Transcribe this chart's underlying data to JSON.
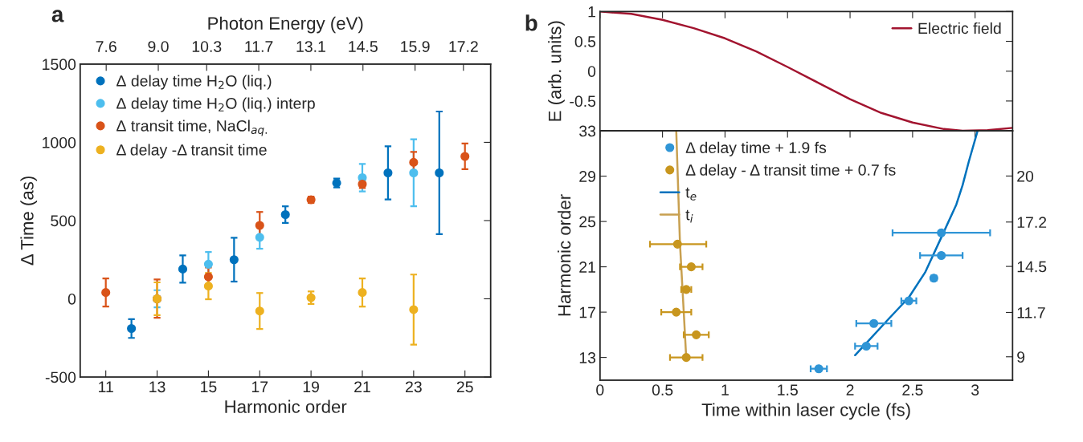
{
  "chart_data": [
    {
      "type": "scatter",
      "xlabel": "Harmonic order",
      "x2label": "Photon Energy (eV)",
      "ylabel": "Δ Time (as)",
      "xlim": [
        10,
        26
      ],
      "xticks": [
        11,
        13,
        15,
        17,
        19,
        21,
        23,
        25
      ],
      "x2lim": [
        6.9,
        17.93
      ],
      "x2ticks": [
        {
          "value": 7.6,
          "label": "7.6"
        },
        {
          "value": 9.0,
          "label": "9.0"
        },
        {
          "value": 10.3,
          "label": "10.3"
        },
        {
          "value": 11.7,
          "label": "11.7"
        },
        {
          "value": 13.1,
          "label": "13.1"
        },
        {
          "value": 14.5,
          "label": "14.5"
        },
        {
          "value": 15.9,
          "label": "15.9"
        },
        {
          "value": 17.2,
          "label": "17.2"
        }
      ],
      "ylim": [
        -500,
        1500
      ],
      "yticks": [
        -500,
        0,
        500,
        1000,
        1500
      ],
      "marker": "circle",
      "legend": "top left",
      "grid": false,
      "annotations": [
        "a"
      ],
      "series": [
        {
          "name": "Δ delay time H$_{2}$O (liq.)",
          "color": "#0072bd",
          "x": [
            12,
            14,
            16,
            18,
            20,
            22,
            24
          ],
          "values": [
            -190,
            190,
            250,
            538,
            740,
            805,
            805
          ],
          "errors": [
            60,
            87,
            140,
            53,
            28,
            170,
            392
          ]
        },
        {
          "name": "Δ delay time H$_{2}$O (liq.) interp",
          "color": "#4dbeee",
          "x": [
            13,
            15,
            17,
            19,
            21,
            23
          ],
          "values": [
            0,
            221,
            393,
            null,
            774,
            805
          ],
          "errors": [
            55,
            78,
            73,
            null,
            88,
            214
          ]
        },
        {
          "name": "Δ transit time, NaCl$_{aq.}$",
          "color": "#d95319",
          "x": [
            11,
            13,
            15,
            17,
            19,
            21,
            23,
            25
          ],
          "values": [
            40,
            0,
            140,
            469,
            633,
            733,
            872,
            910
          ],
          "errors": [
            90,
            [
              -121,
              124
            ],
            60,
            86,
            20,
            25,
            67,
            82
          ]
        },
        {
          "name": "Δ delay -Δ transit time",
          "color": "#edb120",
          "x": [
            13,
            15,
            17,
            19,
            21,
            23
          ],
          "values": [
            0,
            81,
            -78,
            7,
            40,
            -69
          ],
          "errors": [
            [
              -105,
              105
            ],
            84,
            115,
            40,
            90,
            224
          ]
        }
      ]
    },
    {
      "type": "line",
      "ylabel": "E (arb. units)",
      "xlim": [
        0,
        3.3
      ],
      "xticks": [
        0,
        0.5,
        1,
        1.5,
        2,
        2.5,
        3
      ],
      "ylim": [
        -1,
        1
      ],
      "yticks": [
        {
          "value": -1,
          "label": null
        },
        -0.5,
        0,
        0.5,
        1
      ],
      "tick_labels": "y",
      "legend": "top right",
      "grid": false,
      "annotations": [
        "b"
      ],
      "series": [
        {
          "name": "Electric field",
          "color": "#a2142f",
          "x": [
            0,
            0.25,
            0.5,
            0.75,
            1.0,
            1.25,
            1.5,
            1.75,
            2.0,
            2.25,
            2.5,
            2.75,
            2.9,
            3.1,
            3.3
          ],
          "values": [
            1,
            0.96,
            0.86,
            0.72,
            0.55,
            0.33,
            0.07,
            -0.2,
            -0.47,
            -0.7,
            -0.86,
            -0.97,
            -1.0,
            -0.99,
            -0.95
          ]
        }
      ]
    },
    {
      "type": "scatter",
      "xlabel": "Time within laser cycle (fs)",
      "ylabel": "Harmonic order",
      "xlim": [
        0,
        3.3
      ],
      "xticks": [
        0,
        0.5,
        1,
        1.5,
        2,
        2.5,
        3
      ],
      "ylim": [
        11,
        33
      ],
      "yticks": [
        13,
        17,
        21,
        25,
        29,
        33
      ],
      "y2lim": [
        7.58,
        22.75
      ],
      "y2ticks": [
        9,
        11.7,
        14.5,
        17.2,
        20
      ],
      "marker": "circle",
      "legend": "top left",
      "grid": false,
      "series": [
        {
          "name": "Δ delay time + 1.9 fs",
          "color": "#2f95d6",
          "x": [
            1.75,
            2.13,
            2.19,
            2.47,
            2.67,
            2.73,
            2.73
          ],
          "values": [
            12,
            14,
            16,
            18,
            20,
            22,
            24
          ],
          "xerrors": [
            0.065,
            0.09,
            0.14,
            0.06,
            0.02,
            0.17,
            0.39
          ]
        },
        {
          "name": "Δ delay - Δ transit time + 0.7 fs",
          "color": "#c8961e",
          "x": [
            0.62,
            0.73,
            0.69,
            0.61,
            0.77,
            0.69
          ],
          "values": [
            23,
            21,
            19,
            17,
            15,
            13
          ],
          "xerrors": [
            [
              0.4,
              0.85
            ],
            0.09,
            0.04,
            0.12,
            0.1,
            0.13
          ]
        },
        {
          "name": "t$_{e}$",
          "type": "line",
          "marker": "none",
          "color": "#0072bd",
          "x": [
            2.04,
            2.15,
            2.3,
            2.47,
            2.6,
            2.73,
            2.85,
            2.9,
            2.95,
            3.02
          ],
          "values": [
            13.2,
            14.5,
            16.3,
            18.3,
            20.5,
            23.6,
            26.5,
            28.2,
            30.3,
            33
          ]
        },
        {
          "name": "t$_{i}$",
          "type": "line",
          "marker": "none",
          "color": "#c8a050",
          "x": [
            0.61,
            0.64,
            0.67,
            0.69
          ],
          "values": [
            33,
            23,
            17,
            12.9
          ]
        }
      ]
    }
  ]
}
